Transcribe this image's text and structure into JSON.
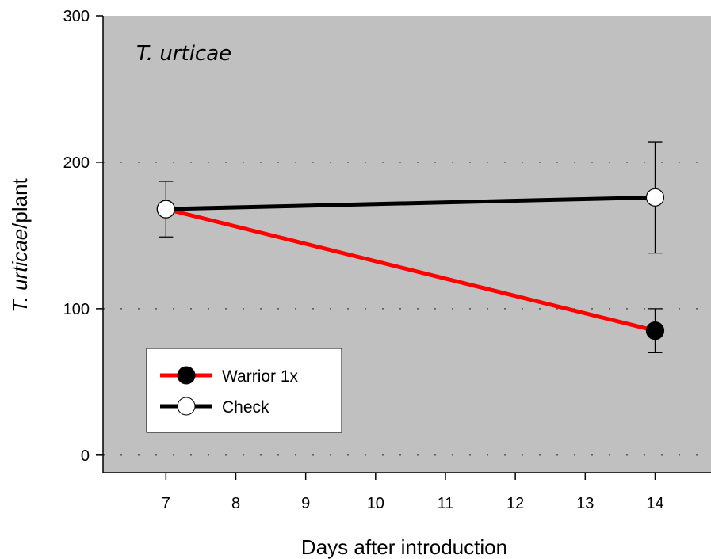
{
  "chart_data": {
    "type": "line",
    "title": "T. urticae",
    "xlabel": "Days after introduction",
    "ylabel_italic": "T. urticae",
    "ylabel_suffix": "/plant",
    "xlim": [
      6.1,
      14.8
    ],
    "ylim": [
      -12,
      300
    ],
    "x_ticks": [
      7,
      8,
      9,
      10,
      11,
      12,
      13,
      14
    ],
    "y_ticks": [
      0,
      100,
      200,
      300
    ],
    "grid": "horizontal dotted",
    "legend_position": "bottom-left",
    "background": "#c0c0c0",
    "series": [
      {
        "name": "Warrior 1x",
        "line_color": "#ff0000",
        "marker_fill": "#000000",
        "x": [
          7,
          14
        ],
        "y": [
          168,
          85
        ],
        "err_low": [
          168,
          70
        ],
        "err_high": [
          168,
          100
        ]
      },
      {
        "name": "Check",
        "line_color": "#000000",
        "marker_fill": "#ffffff",
        "x": [
          7,
          14
        ],
        "y": [
          168,
          176
        ],
        "err_low": [
          149,
          138
        ],
        "err_high": [
          187,
          214
        ]
      }
    ]
  }
}
